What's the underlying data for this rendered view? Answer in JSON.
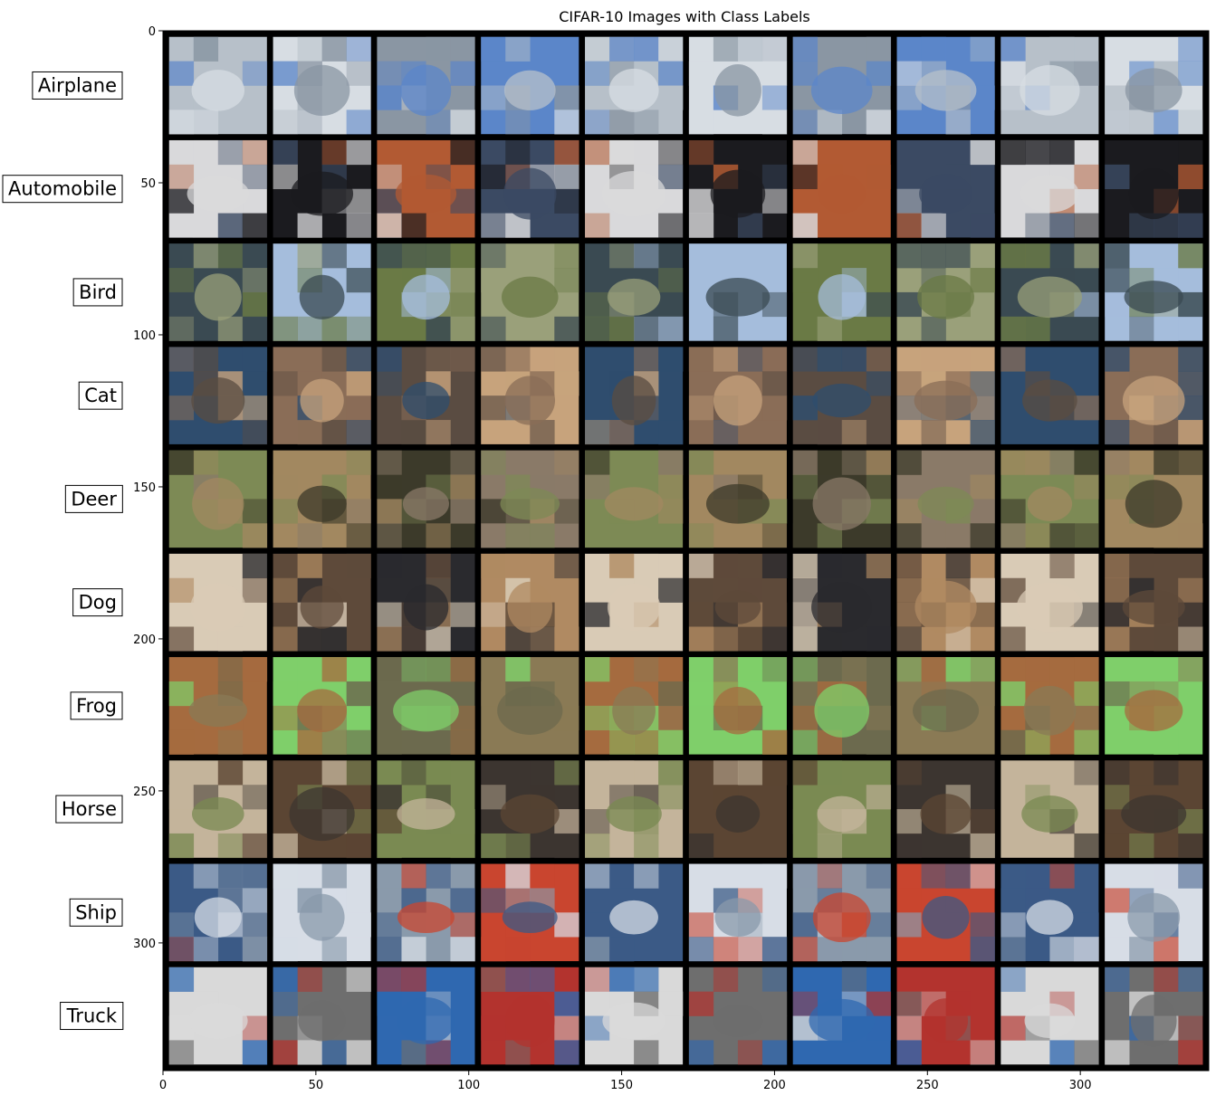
{
  "chart_data": {
    "type": "image_grid",
    "title": "CIFAR-10 Images with Class Labels",
    "xlabel": "",
    "ylabel": "",
    "grid": false,
    "image_extent": {
      "width": 342,
      "height": 342
    },
    "xlim": [
      0,
      342
    ],
    "ylim": [
      342,
      0
    ],
    "x_ticks": [
      0,
      50,
      100,
      150,
      200,
      250,
      300
    ],
    "y_ticks": [
      0,
      50,
      100,
      150,
      200,
      250,
      300
    ],
    "rows": 10,
    "cols": 10,
    "tile_size": 32,
    "tile_padding": 2,
    "background_color": "#000000",
    "classes": [
      {
        "label": "Airplane",
        "palette": [
          "#b7c0c9",
          "#d7dde3",
          "#8a96a3",
          "#5b86c9"
        ]
      },
      {
        "label": "Automobile",
        "palette": [
          "#3b4a63",
          "#d9d9db",
          "#1b1b1f",
          "#b25a33"
        ]
      },
      {
        "label": "Bird",
        "palette": [
          "#6a7a45",
          "#9aa07a",
          "#3a4a52",
          "#a5bddc"
        ]
      },
      {
        "label": "Cat",
        "palette": [
          "#8a6d57",
          "#5a4c42",
          "#c7a37c",
          "#2f4d6e"
        ]
      },
      {
        "label": "Deer",
        "palette": [
          "#7d8a55",
          "#a28860",
          "#3c3a2a",
          "#8a7a68"
        ]
      },
      {
        "label": "Dog",
        "palette": [
          "#b08a62",
          "#d9cbb6",
          "#5e4a3a",
          "#2a2a2e"
        ]
      },
      {
        "label": "Frog",
        "palette": [
          "#6c6a4e",
          "#8a7a55",
          "#a56b3f",
          "#7fcf6a"
        ]
      },
      {
        "label": "Horse",
        "palette": [
          "#5b4533",
          "#7a8a52",
          "#3c3530",
          "#c4b49b"
        ]
      },
      {
        "label": "Ship",
        "palette": [
          "#3b5a86",
          "#d7dde6",
          "#8a9aab",
          "#c9452f"
        ]
      },
      {
        "label": "Truck",
        "palette": [
          "#b3332e",
          "#d9d9d9",
          "#6e6e6e",
          "#2f68b0"
        ]
      }
    ]
  }
}
